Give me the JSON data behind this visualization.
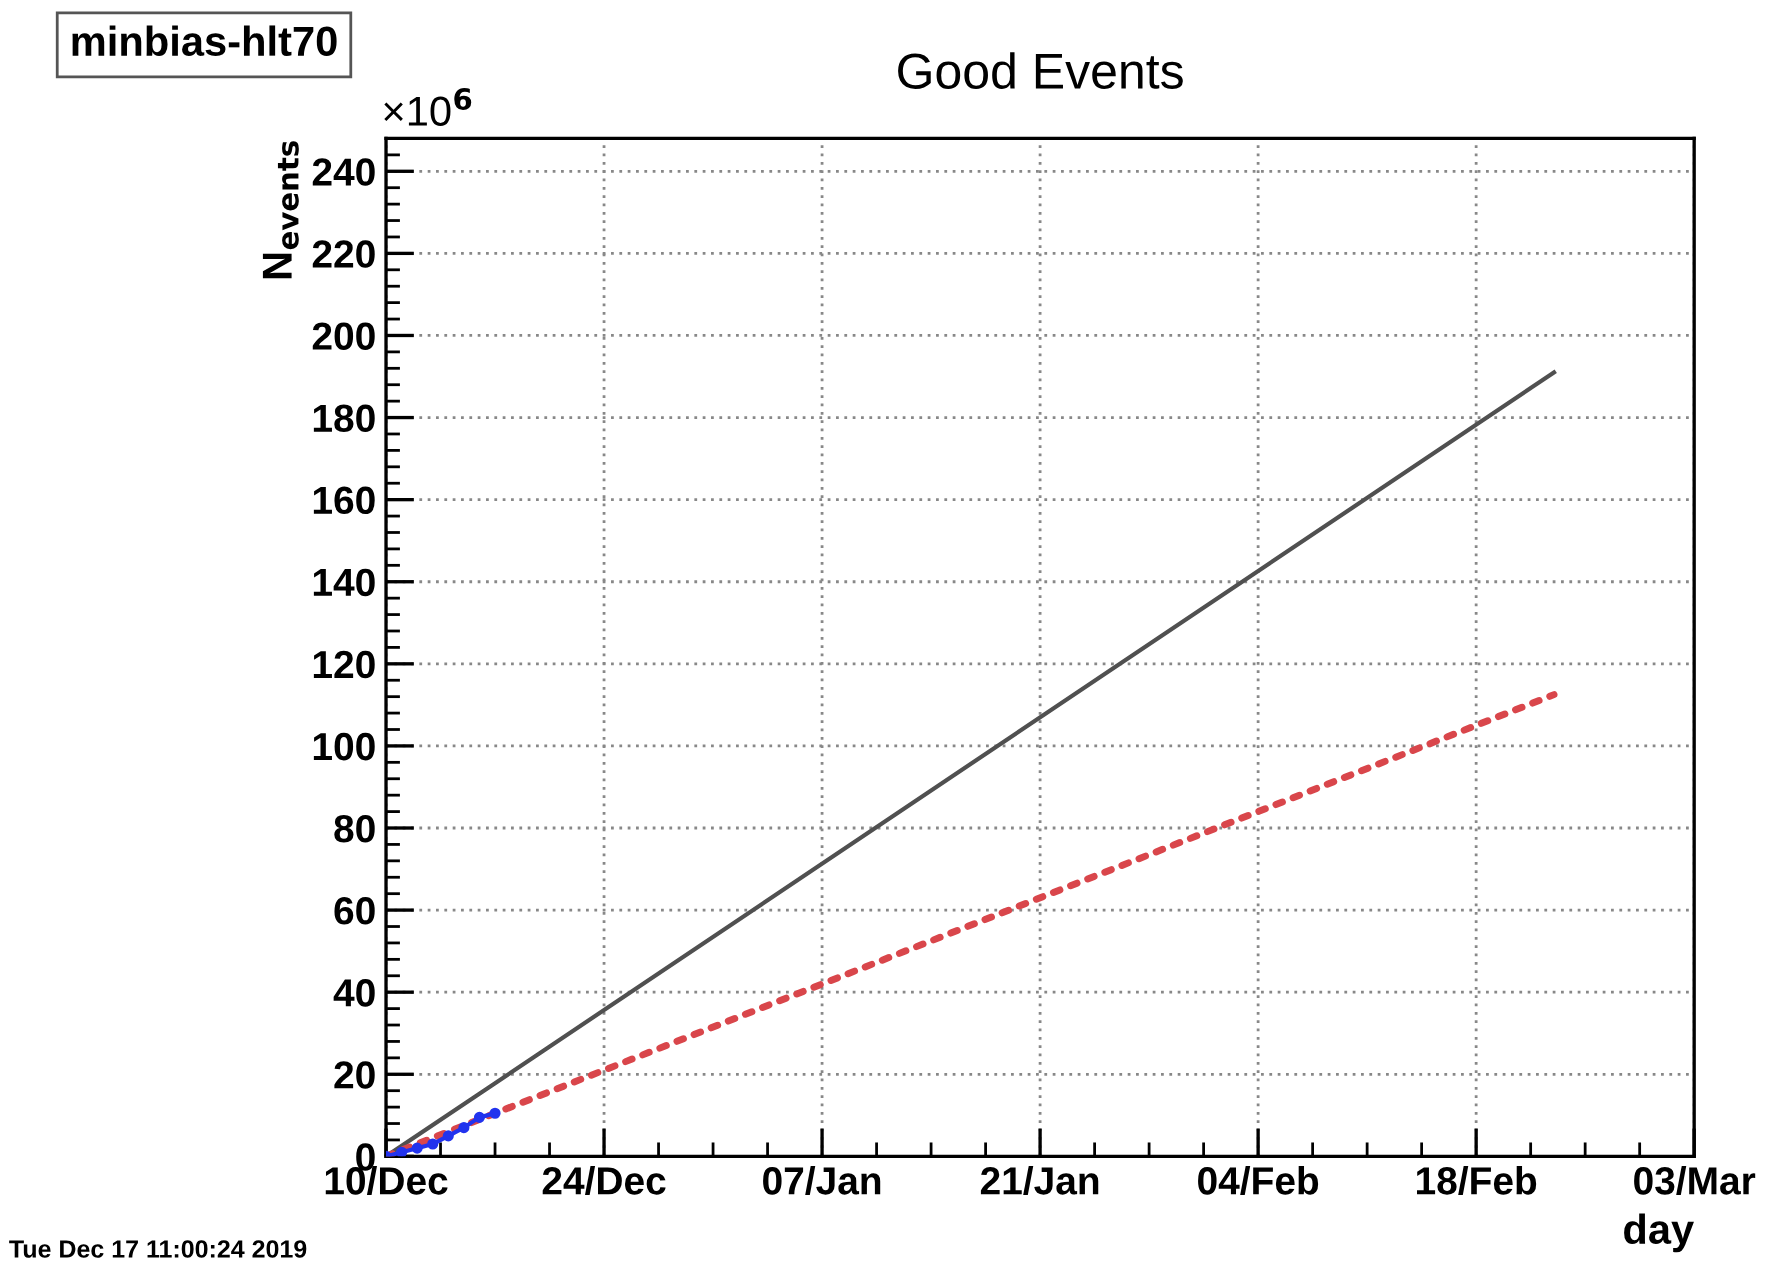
{
  "chart_data": {
    "type": "line",
    "title": "Good Events",
    "xlabel": "day",
    "ylabel": "N$_{events}$",
    "annotations": [
      "minbias-hlt70",
      "×10$^{6}$",
      "Tue Dec 17 11:00:24 2019"
    ],
    "series": [
      {
        "color": "#505050",
        "line_style": "solid",
        "marker": "none",
        "x": [
          "2019-12-10",
          "2020-02-23"
        ],
        "values": [
          0,
          191
        ]
      },
      {
        "color": "#d9464b",
        "line_style": "dotted",
        "marker": "none",
        "x": [
          "2019-12-10",
          "2020-02-23"
        ],
        "values": [
          0,
          112.5
        ]
      },
      {
        "color": "#2233ee",
        "line_style": "solid",
        "marker": "circle",
        "x": [
          "2019-12-10",
          "2019-12-11",
          "2019-12-12",
          "2019-12-13",
          "2019-12-14",
          "2019-12-15",
          "2019-12-16",
          "2019-12-17"
        ],
        "values": [
          0,
          1,
          2,
          3,
          5,
          7,
          9.5,
          10.5
        ]
      }
    ],
    "xlim": [
      "2019-12-10",
      "2020-03-03"
    ],
    "xticks": [
      {
        "value": "2019-12-10",
        "label": "10/Dec"
      },
      {
        "value": "2019-12-24",
        "label": "24/Dec"
      },
      {
        "value": "2020-01-07",
        "label": "07/Jan"
      },
      {
        "value": "2020-01-21",
        "label": "21/Jan"
      },
      {
        "value": "2020-02-04",
        "label": "04/Feb"
      },
      {
        "value": "2020-02-18",
        "label": "18/Feb"
      },
      {
        "value": "2020-03-03",
        "label": "03/Mar"
      }
    ],
    "ylim": [
      0,
      248
    ],
    "yticks": [
      0,
      20,
      40,
      60,
      80,
      100,
      120,
      140,
      160,
      180,
      200,
      220,
      240
    ],
    "grid": true,
    "legend": false
  }
}
